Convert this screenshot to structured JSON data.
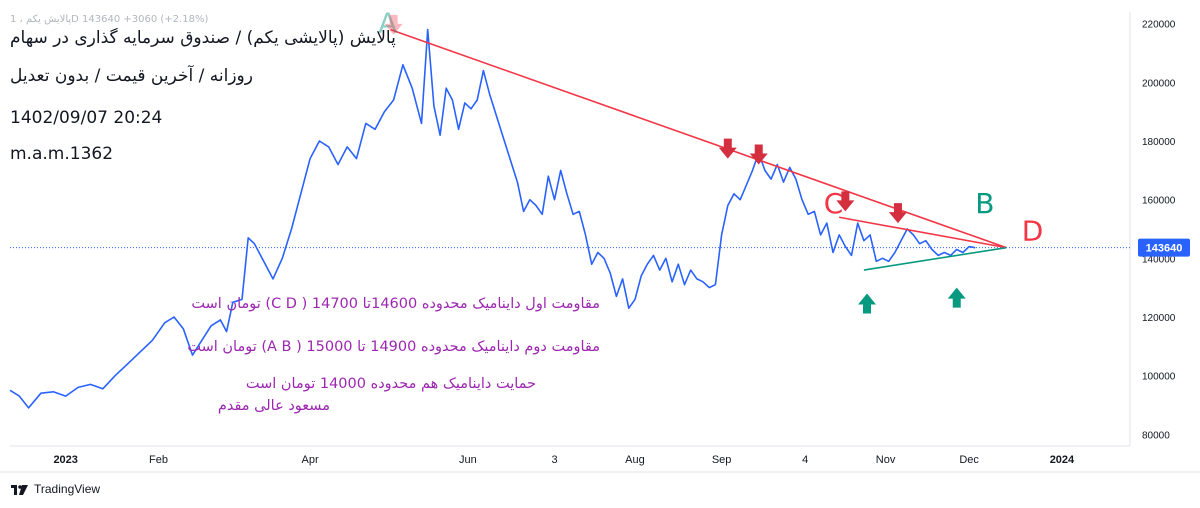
{
  "header": {
    "ticker_line": "پالایش یکم ، 1D   143640  +3060 (+2.18%)",
    "title": "پالایش (پالایشی یکم) / صندوق سرمایه گذاری در سهام",
    "subtitle": "روزانه / آخرین قیمت / بدون تعدیل",
    "datetime": "1402/09/07 20:24",
    "author": "m.a.m.1362"
  },
  "annotations": {
    "note1": "مقاومت اول داینامیک محدوده 14600تا 14700 ( C D) تومان است",
    "note2": "مقاومت دوم داینامیک محدوده 14900 تا 15000 ( A B) تومان است",
    "note3": "حمایت داینامیک هم محدوده 14000 تومان است",
    "note4": "مسعود عالی مقدم",
    "point_labels": [
      "A",
      "B",
      "C",
      "D"
    ]
  },
  "brand": "TradingView",
  "colors": {
    "price_line": "#2962ff",
    "resistance": "#f23645",
    "support": "#089981",
    "annotation_text": "#9c27b0",
    "down_arrow": "#d32f3f",
    "up_arrow": "#089981"
  },
  "chart_data": {
    "type": "line",
    "series": [
      {
        "values": [
          [
            0,
            95000
          ],
          [
            3,
            93000
          ],
          [
            6,
            89000
          ],
          [
            10,
            94000
          ],
          [
            14,
            94500
          ],
          [
            18,
            93000
          ],
          [
            22,
            96000
          ],
          [
            26,
            97000
          ],
          [
            30,
            95500
          ],
          [
            34,
            100000
          ],
          [
            38,
            104000
          ],
          [
            42,
            108000
          ],
          [
            46,
            112000
          ],
          [
            50,
            118000
          ],
          [
            53,
            120000
          ],
          [
            56,
            116000
          ],
          [
            59,
            107000
          ],
          [
            62,
            112000
          ],
          [
            65,
            117000
          ],
          [
            68,
            119000
          ],
          [
            70,
            115000
          ],
          [
            72,
            125000
          ],
          [
            75,
            126000
          ],
          [
            77,
            147000
          ],
          [
            79,
            145000
          ],
          [
            82,
            139000
          ],
          [
            85,
            133000
          ],
          [
            88,
            140000
          ],
          [
            91,
            150000
          ],
          [
            94,
            162000
          ],
          [
            97,
            174000
          ],
          [
            100,
            180000
          ],
          [
            103,
            178000
          ],
          [
            106,
            172000
          ],
          [
            109,
            178000
          ],
          [
            112,
            174000
          ],
          [
            115,
            186000
          ],
          [
            118,
            184000
          ],
          [
            121,
            190000
          ],
          [
            124,
            194000
          ],
          [
            127,
            206000
          ],
          [
            130,
            198000
          ],
          [
            133,
            186000
          ],
          [
            135,
            218000
          ],
          [
            137,
            192000
          ],
          [
            139,
            182000
          ],
          [
            141,
            198000
          ],
          [
            143,
            194000
          ],
          [
            145,
            184000
          ],
          [
            147,
            193000
          ],
          [
            149,
            191000
          ],
          [
            151,
            194000
          ],
          [
            153,
            204000
          ],
          [
            155,
            196000
          ],
          [
            158,
            186000
          ],
          [
            161,
            176000
          ],
          [
            164,
            166000
          ],
          [
            166,
            156000
          ],
          [
            168,
            160000
          ],
          [
            170,
            158000
          ],
          [
            172,
            155000
          ],
          [
            174,
            168000
          ],
          [
            176,
            160000
          ],
          [
            178,
            170000
          ],
          [
            180,
            162000
          ],
          [
            182,
            155000
          ],
          [
            184,
            156000
          ],
          [
            186,
            148000
          ],
          [
            188,
            138000
          ],
          [
            190,
            142000
          ],
          [
            192,
            140000
          ],
          [
            194,
            135000
          ],
          [
            196,
            127000
          ],
          [
            198,
            133000
          ],
          [
            200,
            123000
          ],
          [
            202,
            126000
          ],
          [
            204,
            134000
          ],
          [
            206,
            138000
          ],
          [
            208,
            141000
          ],
          [
            210,
            136000
          ],
          [
            212,
            140000
          ],
          [
            214,
            132000
          ],
          [
            216,
            138000
          ],
          [
            218,
            131000
          ],
          [
            220,
            136000
          ],
          [
            222,
            133000
          ],
          [
            224,
            132000
          ],
          [
            226,
            130000
          ],
          [
            228,
            131000
          ],
          [
            230,
            148000
          ],
          [
            232,
            158000
          ],
          [
            234,
            162000
          ],
          [
            236,
            160000
          ],
          [
            238,
            165000
          ],
          [
            240,
            170000
          ],
          [
            242,
            176000
          ],
          [
            244,
            170000
          ],
          [
            246,
            167000
          ],
          [
            248,
            172000
          ],
          [
            250,
            166000
          ],
          [
            252,
            171000
          ],
          [
            254,
            167000
          ],
          [
            256,
            160000
          ],
          [
            258,
            155000
          ],
          [
            260,
            156000
          ],
          [
            262,
            148000
          ],
          [
            264,
            152000
          ],
          [
            266,
            142000
          ],
          [
            268,
            148000
          ],
          [
            270,
            144000
          ],
          [
            272,
            141000
          ],
          [
            274,
            152000
          ],
          [
            276,
            146000
          ],
          [
            278,
            148000
          ],
          [
            280,
            139000
          ],
          [
            282,
            140000
          ],
          [
            284,
            139000
          ],
          [
            286,
            142000
          ],
          [
            288,
            146000
          ],
          [
            290,
            150000
          ],
          [
            292,
            148000
          ],
          [
            294,
            145000
          ],
          [
            296,
            146000
          ],
          [
            298,
            143000
          ],
          [
            300,
            141000
          ],
          [
            302,
            142000
          ],
          [
            304,
            141000
          ],
          [
            306,
            143000
          ],
          [
            308,
            142000
          ],
          [
            310,
            144000
          ],
          [
            312,
            143640
          ]
        ]
      }
    ],
    "x_ticks": [
      {
        "label": "2023",
        "x": 18
      },
      {
        "label": "Feb",
        "x": 48
      },
      {
        "label": "Apr",
        "x": 97
      },
      {
        "label": "Jun",
        "x": 148
      },
      {
        "label": "3",
        "x": 176
      },
      {
        "label": "Aug",
        "x": 202
      },
      {
        "label": "Sep",
        "x": 230
      },
      {
        "label": "4",
        "x": 257
      },
      {
        "label": "Nov",
        "x": 283
      },
      {
        "label": "Dec",
        "x": 310
      },
      {
        "label": "2024",
        "x": 340
      }
    ],
    "y_ticks": [
      80000,
      100000,
      120000,
      140000,
      160000,
      180000,
      200000,
      220000
    ],
    "ylim": [
      76000,
      224000
    ],
    "xlim": [
      0,
      362
    ],
    "last_price": {
      "label": "143640",
      "value": 143640
    },
    "trendlines": [
      {
        "name": "A-D",
        "color": "resistance",
        "from": [
          123,
          218000
        ],
        "to": [
          322,
          143640
        ]
      },
      {
        "name": "C-D",
        "color": "resistance",
        "from": [
          268,
          154000
        ],
        "to": [
          322,
          143640
        ]
      },
      {
        "name": "support",
        "color": "support",
        "from": [
          276,
          136000
        ],
        "to": [
          322,
          143640
        ]
      }
    ],
    "down_arrows": [
      [
        232,
        174000
      ],
      [
        242,
        172000
      ],
      [
        270,
        156000
      ],
      [
        287,
        152000
      ]
    ],
    "up_arrows": [
      [
        277,
        128000
      ],
      [
        306,
        130000
      ]
    ],
    "point_markers": [
      {
        "label": "A",
        "x": 119,
        "y": 217000,
        "color": "support",
        "faded": true
      },
      {
        "label": "A-flag",
        "x": 124,
        "y": 223000,
        "color": "resistance",
        "faded": true
      },
      {
        "label": "B",
        "x": 312,
        "y": 155500,
        "color": "support"
      },
      {
        "label": "C",
        "x": 263,
        "y": 155500,
        "color": "resistance"
      },
      {
        "label": "D",
        "x": 327,
        "y": 146000,
        "color": "resistance"
      }
    ]
  }
}
